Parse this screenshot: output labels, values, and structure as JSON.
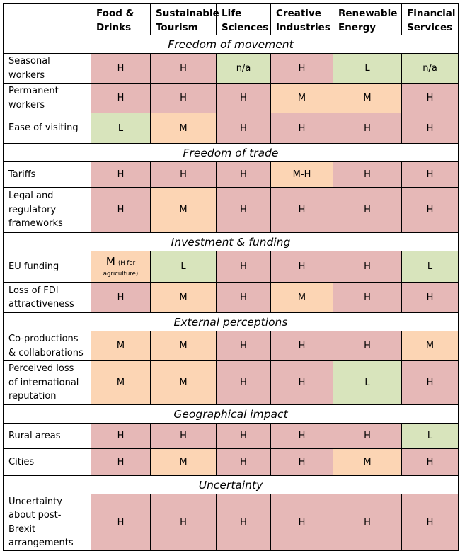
{
  "headers": [
    "",
    "Food & Drinks",
    "Sustainable Tourism",
    "Life Sciences",
    "Creative Industries",
    "Renewable Energy",
    "Financial Services"
  ],
  "colors": {
    "H": "#e6b8b7",
    "M": "#fcd5b4",
    "L": "#d8e4bc",
    "n/a": "#d8e4bc"
  },
  "sections": [
    {
      "title": "Freedom of movement",
      "rows": [
        {
          "label": "Seasonal workers",
          "values": [
            "H",
            "H",
            "n/a",
            "H",
            "L",
            "n/a"
          ]
        },
        {
          "label": "Permanent workers",
          "values": [
            "H",
            "H",
            "H",
            "M",
            "M",
            "H"
          ]
        },
        {
          "label": "Ease of visiting",
          "values": [
            "L",
            "M",
            "H",
            "H",
            "H",
            "H"
          ]
        }
      ]
    },
    {
      "title": "Freedom of trade",
      "rows": [
        {
          "label": "Tariffs",
          "values": [
            "H",
            "H",
            "H",
            "M-H",
            "H",
            "H"
          ]
        },
        {
          "label": "Legal and regulatory frameworks",
          "values": [
            "H",
            "M",
            "H",
            "H",
            "H",
            "H"
          ]
        }
      ]
    },
    {
      "title": "Investment & funding",
      "rows": [
        {
          "label": "EU funding",
          "values": [
            "M",
            "L",
            "H",
            "H",
            "H",
            "L"
          ],
          "note": "(H for agriculture)"
        },
        {
          "label": "Loss of FDI attractiveness",
          "values": [
            "H",
            "M",
            "H",
            "M",
            "H",
            "H"
          ]
        }
      ]
    },
    {
      "title": "External perceptions",
      "rows": [
        {
          "label": "Co-productions & collaborations",
          "values": [
            "M",
            "M",
            "H",
            "H",
            "H",
            "M"
          ]
        },
        {
          "label": "Perceived loss of international reputation",
          "values": [
            "M",
            "M",
            "H",
            "H",
            "L",
            "H"
          ]
        }
      ]
    },
    {
      "title": "Geographical impact",
      "rows": [
        {
          "label": "Rural areas",
          "values": [
            "H",
            "H",
            "H",
            "H",
            "H",
            "L"
          ]
        },
        {
          "label": "Cities",
          "values": [
            "H",
            "M",
            "H",
            "H",
            "M",
            "H"
          ]
        }
      ]
    },
    {
      "title": "Uncertainty",
      "rows": [
        {
          "label": "Uncertainty about post-Brexit arrangements",
          "values": [
            "H",
            "H",
            "H",
            "H",
            "H",
            "H"
          ]
        }
      ]
    }
  ]
}
